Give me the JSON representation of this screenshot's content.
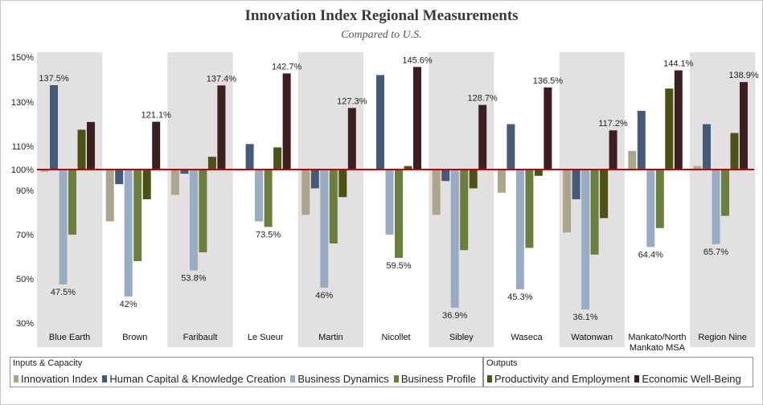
{
  "header": {
    "title": "Innovation Index Regional Measurements",
    "subtitle": "Compared to U.S."
  },
  "colors": {
    "innovation_index": "#aaa68d",
    "human_capital": "#435a78",
    "business_dynamics": "#9aacc4",
    "business_profile": "#6a7f3d",
    "productivity": "#4c5216",
    "economic_wellbeing": "#3d1f22",
    "baseline": "#c00000",
    "band": "#e2e0e1"
  },
  "legend": {
    "groups": [
      {
        "title": "Inputs & Capacity",
        "items": [
          "Innovation Index",
          "Human Capital & Knowledge Creation",
          "Business Dynamics",
          "Business Profile"
        ]
      },
      {
        "title": "Outputs",
        "items": [
          "Productivity and Employment",
          "Economic Well-Being"
        ]
      }
    ]
  },
  "chart_data": {
    "type": "bar",
    "title": "Innovation Index Regional Measurements",
    "subtitle": "Compared to U.S.",
    "categories": [
      "Blue Earth",
      "Brown",
      "Faribault",
      "Le Sueur",
      "Martin",
      "Nicollet",
      "Sibley",
      "Waseca",
      "Watonwan",
      "Mankato/North Mankato MSA",
      "Region Nine"
    ],
    "baseline": 100,
    "ylim": [
      30,
      150
    ],
    "yticks": [
      30,
      50,
      70,
      90,
      100,
      110,
      130,
      150
    ],
    "ytick_labels": [
      "30%",
      "50%",
      "70%",
      "90%",
      "100%",
      "110%",
      "130%",
      "150%"
    ],
    "series": [
      {
        "name": "Innovation Index",
        "values": [
          99,
          76,
          88,
          99.5,
          79,
          99.5,
          79,
          89,
          71,
          108,
          101.5
        ]
      },
      {
        "name": "Human Capital & Knowledge Creation",
        "values": [
          137.5,
          93,
          98,
          111,
          91,
          142,
          94.5,
          120,
          86,
          126,
          120
        ]
      },
      {
        "name": "Business Dynamics",
        "values": [
          47.5,
          42,
          53.8,
          76,
          46,
          70,
          36.9,
          45.3,
          36.1,
          64.4,
          65.7
        ]
      },
      {
        "name": "Business Profile",
        "values": [
          70,
          58,
          62,
          73.5,
          66,
          59.5,
          63,
          64,
          61,
          73,
          78.5
        ]
      },
      {
        "name": "Productivity and Employment",
        "values": [
          117.5,
          86,
          105.5,
          109.5,
          87,
          101.5,
          91,
          97,
          77.5,
          136,
          116
        ]
      },
      {
        "name": "Economic Well-Being",
        "values": [
          121,
          121.1,
          137.4,
          142.7,
          127.3,
          145.6,
          128.7,
          136.5,
          117.2,
          144.1,
          138.9
        ]
      }
    ],
    "data_labels": [
      {
        "category": 0,
        "series": 1,
        "text": "137.5%"
      },
      {
        "category": 0,
        "series": 2,
        "text": "47.5%"
      },
      {
        "category": 1,
        "series": 2,
        "text": "42%"
      },
      {
        "category": 1,
        "series": 5,
        "text": "121.1%"
      },
      {
        "category": 2,
        "series": 2,
        "text": "53.8%"
      },
      {
        "category": 2,
        "series": 5,
        "text": "137.4%"
      },
      {
        "category": 3,
        "series": 3,
        "text": "73.5%"
      },
      {
        "category": 3,
        "series": 5,
        "text": "142.7%"
      },
      {
        "category": 4,
        "series": 2,
        "text": "46%"
      },
      {
        "category": 4,
        "series": 5,
        "text": "127.3%"
      },
      {
        "category": 5,
        "series": 3,
        "text": "59.5%"
      },
      {
        "category": 5,
        "series": 5,
        "text": "145.6%"
      },
      {
        "category": 6,
        "series": 2,
        "text": "36.9%"
      },
      {
        "category": 6,
        "series": 5,
        "text": "128.7%"
      },
      {
        "category": 7,
        "series": 2,
        "text": "45.3%"
      },
      {
        "category": 7,
        "series": 5,
        "text": "136.5%"
      },
      {
        "category": 8,
        "series": 2,
        "text": "36.1%"
      },
      {
        "category": 8,
        "series": 5,
        "text": "117.2%"
      },
      {
        "category": 9,
        "series": 2,
        "text": "64.4%"
      },
      {
        "category": 9,
        "series": 5,
        "text": "144.1%"
      },
      {
        "category": 10,
        "series": 2,
        "text": "65.7%"
      },
      {
        "category": 10,
        "series": 5,
        "text": "138.9%"
      }
    ],
    "shaded_categories": [
      0,
      2,
      4,
      6,
      8,
      10
    ],
    "grid": false,
    "legend_position": "bottom"
  }
}
